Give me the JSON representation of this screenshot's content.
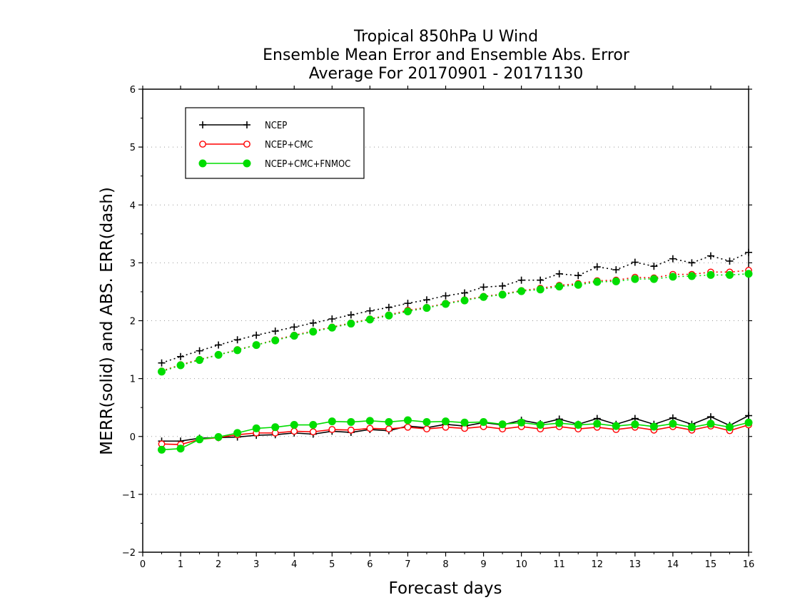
{
  "chart_data": {
    "type": "line",
    "title": [
      "Tropical 850hPa U Wind",
      "Ensemble Mean Error and Ensemble Abs. Error",
      "Average For 20170901 - 20171130"
    ],
    "xlabel": "Forecast days",
    "ylabel": "MERR(solid) and ABS. ERR(dash)",
    "xlim": [
      0,
      16
    ],
    "ylim": [
      -2,
      6
    ],
    "x_ticks": [
      0,
      1,
      2,
      3,
      4,
      5,
      6,
      7,
      8,
      9,
      10,
      11,
      12,
      13,
      14,
      15,
      16
    ],
    "y_ticks": [
      -2,
      -1,
      0,
      1,
      2,
      3,
      4,
      5,
      6
    ],
    "y_tick_labels": [
      "−2",
      "−1",
      "0",
      "1",
      "2",
      "3",
      "4",
      "5",
      "6"
    ],
    "grid": "horizontal dotted",
    "legend_position": "top-left",
    "x": [
      0.5,
      1,
      1.5,
      2,
      2.5,
      3,
      3.5,
      4,
      4.5,
      5,
      5.5,
      6,
      6.5,
      7,
      7.5,
      8,
      8.5,
      9,
      9.5,
      10,
      10.5,
      11,
      11.5,
      12,
      12.5,
      13,
      13.5,
      14,
      14.5,
      15,
      15.5,
      16
    ],
    "series": [
      {
        "name": "NCEP",
        "color": "#000000",
        "marker": "plus",
        "mean_error": [
          -0.08,
          -0.08,
          -0.03,
          -0.02,
          -0.01,
          0.02,
          0.03,
          0.06,
          0.04,
          0.09,
          0.07,
          0.12,
          0.1,
          0.18,
          0.15,
          0.21,
          0.18,
          0.24,
          0.2,
          0.28,
          0.22,
          0.3,
          0.21,
          0.31,
          0.21,
          0.31,
          0.21,
          0.32,
          0.21,
          0.34,
          0.19,
          0.36
        ],
        "abs_error": [
          1.27,
          1.38,
          1.48,
          1.58,
          1.67,
          1.75,
          1.82,
          1.89,
          1.96,
          2.03,
          2.1,
          2.17,
          2.23,
          2.3,
          2.36,
          2.43,
          2.48,
          2.58,
          2.6,
          2.7,
          2.7,
          2.81,
          2.78,
          2.93,
          2.88,
          3.01,
          2.94,
          3.07,
          3.0,
          3.12,
          3.03,
          3.18
        ]
      },
      {
        "name": "NCEP+CMC",
        "color": "#ff0000",
        "marker": "open-circle",
        "mean_error": [
          -0.13,
          -0.14,
          -0.05,
          -0.02,
          0.03,
          0.06,
          0.06,
          0.09,
          0.08,
          0.12,
          0.11,
          0.14,
          0.13,
          0.16,
          0.13,
          0.16,
          0.14,
          0.17,
          0.13,
          0.17,
          0.13,
          0.17,
          0.13,
          0.16,
          0.12,
          0.16,
          0.11,
          0.17,
          0.11,
          0.18,
          0.1,
          0.2
        ],
        "abs_error": [
          1.13,
          1.24,
          1.33,
          1.41,
          1.5,
          1.58,
          1.67,
          1.75,
          1.82,
          1.89,
          1.96,
          2.03,
          2.1,
          2.18,
          2.23,
          2.3,
          2.36,
          2.42,
          2.46,
          2.52,
          2.56,
          2.61,
          2.64,
          2.69,
          2.7,
          2.75,
          2.74,
          2.8,
          2.8,
          2.84,
          2.84,
          2.87
        ]
      },
      {
        "name": "NCEP+CMC+FNMOC",
        "color": "#00dd00",
        "marker": "filled-circle",
        "mean_error": [
          -0.23,
          -0.21,
          -0.05,
          -0.01,
          0.06,
          0.14,
          0.16,
          0.2,
          0.2,
          0.26,
          0.25,
          0.27,
          0.25,
          0.28,
          0.25,
          0.26,
          0.24,
          0.25,
          0.21,
          0.24,
          0.2,
          0.23,
          0.2,
          0.22,
          0.18,
          0.21,
          0.17,
          0.22,
          0.16,
          0.22,
          0.16,
          0.24
        ],
        "abs_error": [
          1.12,
          1.23,
          1.32,
          1.41,
          1.49,
          1.58,
          1.66,
          1.74,
          1.81,
          1.88,
          1.95,
          2.02,
          2.09,
          2.16,
          2.22,
          2.29,
          2.35,
          2.41,
          2.45,
          2.51,
          2.54,
          2.59,
          2.62,
          2.67,
          2.68,
          2.72,
          2.72,
          2.76,
          2.77,
          2.79,
          2.79,
          2.81
        ]
      }
    ]
  }
}
